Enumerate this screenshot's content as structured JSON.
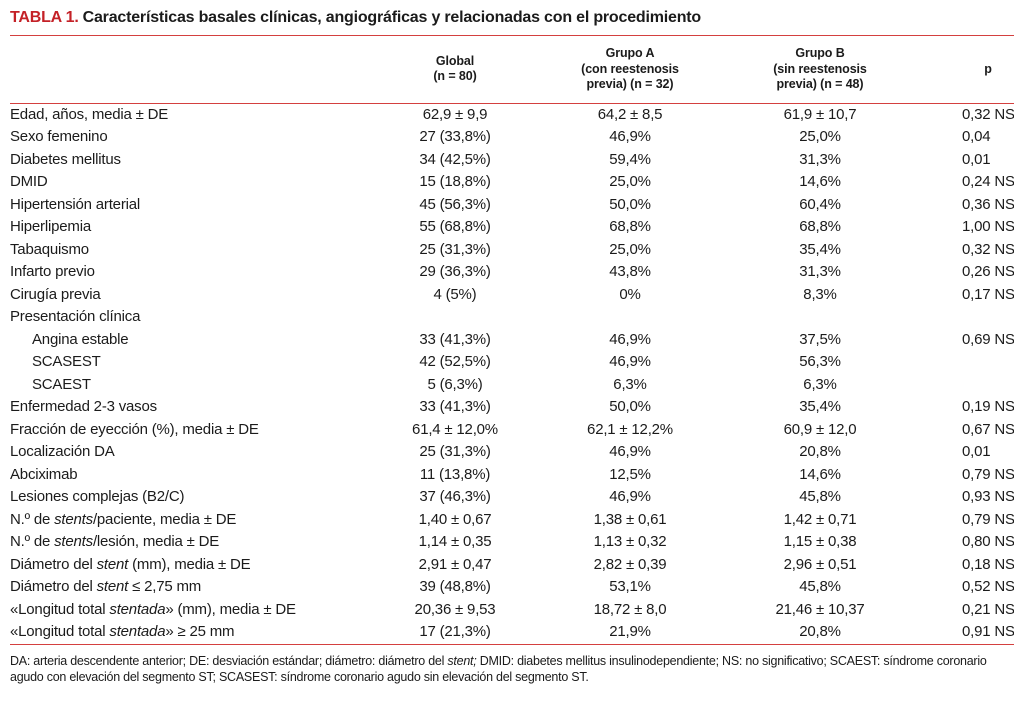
{
  "title": {
    "label": "TABLA 1.",
    "text": "Características basales clínicas, angiográficas y relacionadas con el procedimiento"
  },
  "colors": {
    "accent_red": "#c42127",
    "rule_red": "#d4403f",
    "text": "#1b1b1b"
  },
  "table": {
    "headers": {
      "label": "",
      "global": "Global\n(n = 80)",
      "grupo_a": "Grupo A\n(con reestenosis\nprevia) (n = 32)",
      "grupo_b": "Grupo B\n(sin reestenosis\nprevia) (n = 48)",
      "p": "p"
    },
    "rows": [
      {
        "label": [
          {
            "t": "Edad, años, media ± DE",
            "i": false
          }
        ],
        "indent": false,
        "global": "62,9 ± 9,9",
        "grupo_a": "64,2 ± 8,5",
        "grupo_b": "61,9 ± 10,7",
        "p": "0,32 NS"
      },
      {
        "label": [
          {
            "t": "Sexo femenino",
            "i": false
          }
        ],
        "indent": false,
        "global": "27 (33,8%)",
        "grupo_a": "46,9%",
        "grupo_b": "25,0%",
        "p": "0,04"
      },
      {
        "label": [
          {
            "t": "Diabetes mellitus",
            "i": false
          }
        ],
        "indent": false,
        "global": "34 (42,5%)",
        "grupo_a": "59,4%",
        "grupo_b": "31,3%",
        "p": "0,01"
      },
      {
        "label": [
          {
            "t": "DMID",
            "i": false
          }
        ],
        "indent": false,
        "global": "15 (18,8%)",
        "grupo_a": "25,0%",
        "grupo_b": "14,6%",
        "p": "0,24 NS"
      },
      {
        "label": [
          {
            "t": "Hipertensión arterial",
            "i": false
          }
        ],
        "indent": false,
        "global": "45 (56,3%)",
        "grupo_a": "50,0%",
        "grupo_b": "60,4%",
        "p": "0,36 NS"
      },
      {
        "label": [
          {
            "t": "Hiperlipemia",
            "i": false
          }
        ],
        "indent": false,
        "global": "55 (68,8%)",
        "grupo_a": "68,8%",
        "grupo_b": "68,8%",
        "p": "1,00 NS"
      },
      {
        "label": [
          {
            "t": "Tabaquismo",
            "i": false
          }
        ],
        "indent": false,
        "global": "25 (31,3%)",
        "grupo_a": "25,0%",
        "grupo_b": "35,4%",
        "p": "0,32 NS"
      },
      {
        "label": [
          {
            "t": "Infarto previo",
            "i": false
          }
        ],
        "indent": false,
        "global": "29 (36,3%)",
        "grupo_a": "43,8%",
        "grupo_b": "31,3%",
        "p": "0,26 NS"
      },
      {
        "label": [
          {
            "t": "Cirugía previa",
            "i": false
          }
        ],
        "indent": false,
        "global": "4 (5%)",
        "grupo_a": "0%",
        "grupo_b": "8,3%",
        "p": "0,17 NS"
      },
      {
        "label": [
          {
            "t": "Presentación clínica",
            "i": false
          }
        ],
        "indent": false,
        "global": "",
        "grupo_a": "",
        "grupo_b": "",
        "p": ""
      },
      {
        "label": [
          {
            "t": "Angina estable",
            "i": false
          }
        ],
        "indent": true,
        "global": "33 (41,3%)",
        "grupo_a": "46,9%",
        "grupo_b": "37,5%",
        "p": "0,69 NS"
      },
      {
        "label": [
          {
            "t": "SCASEST",
            "i": false
          }
        ],
        "indent": true,
        "global": "42 (52,5%)",
        "grupo_a": "46,9%",
        "grupo_b": "56,3%",
        "p": ""
      },
      {
        "label": [
          {
            "t": "SCAEST",
            "i": false
          }
        ],
        "indent": true,
        "global": "5 (6,3%)",
        "grupo_a": "6,3%",
        "grupo_b": "6,3%",
        "p": ""
      },
      {
        "label": [
          {
            "t": "Enfermedad 2-3 vasos",
            "i": false
          }
        ],
        "indent": false,
        "global": "33 (41,3%)",
        "grupo_a": "50,0%",
        "grupo_b": "35,4%",
        "p": "0,19 NS"
      },
      {
        "label": [
          {
            "t": "Fracción de eyección (%), media ± DE",
            "i": false
          }
        ],
        "indent": false,
        "global": "61,4 ± 12,0%",
        "grupo_a": "62,1 ± 12,2%",
        "grupo_b": "60,9 ± 12,0",
        "p": "0,67 NS"
      },
      {
        "label": [
          {
            "t": "Localización DA",
            "i": false
          }
        ],
        "indent": false,
        "global": "25 (31,3%)",
        "grupo_a": "46,9%",
        "grupo_b": "20,8%",
        "p": "0,01"
      },
      {
        "label": [
          {
            "t": "Abciximab",
            "i": false
          }
        ],
        "indent": false,
        "global": "11 (13,8%)",
        "grupo_a": "12,5%",
        "grupo_b": "14,6%",
        "p": "0,79 NS"
      },
      {
        "label": [
          {
            "t": "Lesiones complejas (B2/C)",
            "i": false
          }
        ],
        "indent": false,
        "global": "37 (46,3%)",
        "grupo_a": "46,9%",
        "grupo_b": "45,8%",
        "p": "0,93 NS"
      },
      {
        "label": [
          {
            "t": "N.º de ",
            "i": false
          },
          {
            "t": "stents",
            "i": true
          },
          {
            "t": "/paciente, media ± DE",
            "i": false
          }
        ],
        "indent": false,
        "global": "1,40 ± 0,67",
        "grupo_a": "1,38 ± 0,61",
        "grupo_b": "1,42 ± 0,71",
        "p": "0,79 NS"
      },
      {
        "label": [
          {
            "t": "N.º de ",
            "i": false
          },
          {
            "t": "stents",
            "i": true
          },
          {
            "t": "/lesión, media ± DE",
            "i": false
          }
        ],
        "indent": false,
        "global": "1,14 ± 0,35",
        "grupo_a": "1,13 ± 0,32",
        "grupo_b": "1,15 ± 0,38",
        "p": "0,80 NS"
      },
      {
        "label": [
          {
            "t": "Diámetro del ",
            "i": false
          },
          {
            "t": "stent",
            "i": true
          },
          {
            "t": " (mm), media ± DE",
            "i": false
          }
        ],
        "indent": false,
        "global": "2,91 ± 0,47",
        "grupo_a": "2,82 ± 0,39",
        "grupo_b": "2,96 ± 0,51",
        "p": "0,18 NS"
      },
      {
        "label": [
          {
            "t": "Diámetro del ",
            "i": false
          },
          {
            "t": "stent",
            "i": true
          },
          {
            "t": " ≤ 2,75 mm",
            "i": false
          }
        ],
        "indent": false,
        "global": "39 (48,8%)",
        "grupo_a": "53,1%",
        "grupo_b": "45,8%",
        "p": "0,52 NS"
      },
      {
        "label": [
          {
            "t": "«Longitud total ",
            "i": false
          },
          {
            "t": "stentada",
            "i": true
          },
          {
            "t": "» (mm), media ± DE",
            "i": false
          }
        ],
        "indent": false,
        "global": "20,36 ± 9,53",
        "grupo_a": "18,72 ± 8,0",
        "grupo_b": "21,46 ± 10,37",
        "p": "0,21 NS"
      },
      {
        "label": [
          {
            "t": "«Longitud total ",
            "i": false
          },
          {
            "t": "stentada",
            "i": true
          },
          {
            "t": "» ≥ 25 mm",
            "i": false
          }
        ],
        "indent": false,
        "global": "17 (21,3%)",
        "grupo_a": "21,9%",
        "grupo_b": "20,8%",
        "p": "0,91 NS"
      }
    ]
  },
  "footnote": {
    "segments": [
      {
        "t": "DA: arteria descendente anterior; DE: desviación estándar; diámetro: diámetro del ",
        "i": false
      },
      {
        "t": "stent;",
        "i": true
      },
      {
        "t": " DMID: diabetes mellitus insulinodependiente; NS: no significativo; SCAEST: síndrome coronario agudo con elevación del segmento ST; SCASEST: síndrome coronario agudo sin elevación del segmento ST.",
        "i": false
      }
    ]
  }
}
